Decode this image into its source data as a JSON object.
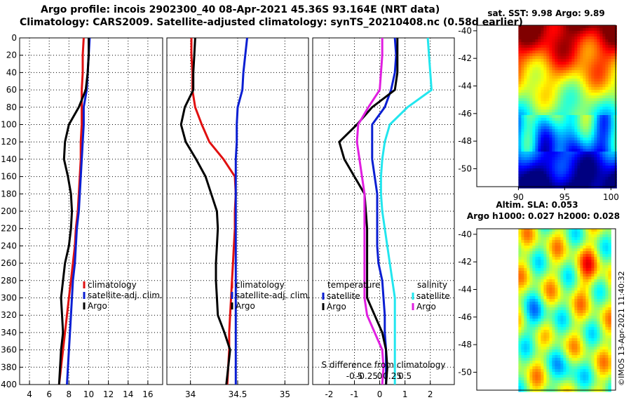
{
  "title_line1": "Argo profile: incois 2902300_40 08-Apr-2021 45.36S 93.164E (NRT data)",
  "title_line2": "Climatology: CARS2009. Satellite-adjusted climatology: synTS_20210408.nc (0.58d earlier)",
  "credit": "©IMOS 13-Apr-2021 11:40:32",
  "colors": {
    "climatology": "#e01010",
    "satellite": "#0a1ed2",
    "argo": "#000000",
    "sal_satellite": "#22e6ee",
    "sal_argo": "#e01ee0"
  },
  "depth_axis": {
    "min": 0,
    "max": 400,
    "ticks": [
      0,
      20,
      40,
      60,
      80,
      100,
      120,
      140,
      160,
      180,
      200,
      220,
      240,
      260,
      280,
      300,
      320,
      340,
      360,
      380,
      400
    ]
  },
  "chart_data": [
    {
      "type": "line",
      "name": "temperature-profile",
      "xlim": [
        3,
        17.5
      ],
      "xticks": [
        4,
        6,
        8,
        10,
        12,
        14,
        16
      ],
      "legend": [
        "climatology",
        "satellite-adj. clim.",
        "Argo"
      ],
      "series": [
        {
          "name": "climatology",
          "color": "#e01010",
          "x": [
            9.5,
            9.4,
            9.4,
            9.3,
            9.3,
            9.3,
            9.2,
            9.2,
            9.1,
            9.0,
            8.9,
            8.7,
            8.6,
            8.4,
            8.2,
            8.0,
            7.8,
            7.6,
            7.4,
            7.2,
            7.0
          ],
          "y": [
            0,
            20,
            40,
            60,
            80,
            100,
            120,
            140,
            160,
            180,
            200,
            220,
            240,
            260,
            280,
            300,
            320,
            340,
            360,
            380,
            400
          ]
        },
        {
          "name": "satellite-adj. clim.",
          "color": "#0a1ed2",
          "x": [
            10.1,
            10.0,
            9.9,
            9.8,
            9.5,
            9.5,
            9.4,
            9.3,
            9.2,
            9.1,
            9.0,
            8.8,
            8.7,
            8.6,
            8.4,
            8.3,
            8.2,
            8.1,
            8.0,
            7.9,
            7.8
          ],
          "y": [
            0,
            20,
            40,
            60,
            80,
            100,
            120,
            140,
            160,
            180,
            200,
            220,
            240,
            260,
            280,
            300,
            320,
            340,
            360,
            380,
            400
          ]
        },
        {
          "name": "Argo",
          "color": "#000000",
          "x": [
            10.0,
            10.0,
            9.9,
            9.7,
            9.0,
            8.0,
            7.6,
            7.5,
            7.9,
            8.2,
            8.3,
            8.2,
            8.0,
            7.6,
            7.4,
            7.2,
            7.3,
            7.4,
            7.2,
            7.1,
            7.0
          ],
          "y": [
            0,
            20,
            40,
            60,
            80,
            100,
            120,
            140,
            160,
            180,
            200,
            220,
            240,
            260,
            280,
            300,
            320,
            340,
            360,
            380,
            400
          ]
        }
      ]
    },
    {
      "type": "line",
      "name": "salinity-profile",
      "xlim": [
        33.75,
        35.25
      ],
      "xticks": [
        34,
        34.5,
        35
      ],
      "xticklabels": [
        "34",
        "34.5",
        "35"
      ],
      "legend": [
        "climatology",
        "satellite-adj. clim.",
        "Argo"
      ],
      "series": [
        {
          "name": "climatology",
          "color": "#e01010",
          "x": [
            34.01,
            34.01,
            34.02,
            34.02,
            34.05,
            34.12,
            34.2,
            34.35,
            34.47,
            34.48,
            34.47,
            34.47,
            34.46,
            34.45,
            34.44,
            34.43,
            34.42,
            34.41,
            34.41,
            34.4,
            34.39
          ],
          "y": [
            0,
            20,
            40,
            60,
            80,
            100,
            120,
            140,
            160,
            180,
            200,
            220,
            240,
            260,
            280,
            300,
            320,
            340,
            360,
            380,
            400
          ]
        },
        {
          "name": "satellite-adj. clim.",
          "color": "#0a1ed2",
          "x": [
            34.6,
            34.58,
            34.56,
            34.55,
            34.5,
            34.49,
            34.49,
            34.48,
            34.48,
            34.48,
            34.48,
            34.48,
            34.48,
            34.48,
            34.48,
            34.48,
            34.48,
            34.48,
            34.48,
            34.48,
            34.48
          ],
          "y": [
            0,
            20,
            40,
            60,
            80,
            100,
            120,
            140,
            160,
            180,
            200,
            220,
            240,
            260,
            280,
            300,
            320,
            340,
            360,
            380,
            400
          ]
        },
        {
          "name": "Argo",
          "color": "#000000",
          "x": [
            34.05,
            34.04,
            34.03,
            34.03,
            33.94,
            33.9,
            33.95,
            34.06,
            34.16,
            34.22,
            34.28,
            34.29,
            34.28,
            34.27,
            34.27,
            34.28,
            34.29,
            34.36,
            34.42,
            34.4,
            34.38
          ],
          "y": [
            0,
            20,
            40,
            60,
            80,
            100,
            120,
            140,
            160,
            180,
            200,
            220,
            240,
            260,
            280,
            300,
            320,
            340,
            360,
            380,
            400
          ]
        }
      ]
    },
    {
      "type": "line",
      "name": "difference-from-climatology",
      "xlim": [
        -2.65,
        2.95
      ],
      "xticks": [
        -2,
        -1,
        0,
        1,
        2
      ],
      "xticklabels": [
        "-2",
        "-1",
        "0",
        "1",
        "2"
      ],
      "xticks2": [
        -1.0,
        -0.5,
        0,
        0.5,
        1.0
      ],
      "xticklabels2": [
        "-0.5",
        "-0.25",
        "0",
        "0.25",
        "0.5"
      ],
      "xlabel2": "S difference from climatology",
      "legend_temperature": {
        "title": "temperature",
        "items": [
          "satellite",
          "Argo"
        ]
      },
      "legend_salinity": {
        "title": "salinity",
        "items": [
          "satellite",
          "Argo"
        ]
      },
      "series": [
        {
          "name": "temperature satellite",
          "color": "#0a1ed2",
          "x": [
            0.6,
            0.65,
            0.6,
            0.45,
            0.2,
            -0.3,
            -0.3,
            -0.3,
            -0.2,
            -0.1,
            -0.1,
            -0.1,
            -0.1,
            -0.05,
            0.1,
            0.15,
            0.2,
            0.2,
            0.25,
            0.25,
            0.25
          ],
          "y": [
            0,
            20,
            40,
            60,
            80,
            100,
            120,
            140,
            160,
            180,
            200,
            220,
            240,
            260,
            280,
            300,
            320,
            340,
            360,
            380,
            400
          ]
        },
        {
          "name": "temperature Argo",
          "color": "#000000",
          "x": [
            0.7,
            0.7,
            0.7,
            0.6,
            -0.3,
            -0.9,
            -1.6,
            -1.4,
            -1.0,
            -0.6,
            -0.55,
            -0.5,
            -0.5,
            -0.5,
            -0.5,
            -0.5,
            -0.2,
            0.1,
            0.25,
            0.3,
            0.25
          ],
          "y": [
            0,
            20,
            40,
            60,
            80,
            100,
            120,
            140,
            160,
            180,
            200,
            220,
            240,
            260,
            280,
            300,
            320,
            340,
            360,
            380,
            400
          ]
        },
        {
          "name": "salinity satellite",
          "color": "#22e6ee",
          "x": [
            1.9,
            1.95,
            2.0,
            2.05,
            1.1,
            0.4,
            0.2,
            0.1,
            0.05,
            0.05,
            0.1,
            0.2,
            0.3,
            0.4,
            0.5,
            0.6,
            0.6,
            0.6,
            0.6,
            0.6,
            0.6
          ],
          "y": [
            0,
            20,
            40,
            60,
            80,
            100,
            120,
            140,
            160,
            180,
            200,
            220,
            240,
            260,
            280,
            300,
            320,
            340,
            360,
            380,
            400
          ]
        },
        {
          "name": "salinity Argo",
          "color": "#e01ee0",
          "x": [
            0.1,
            0.1,
            0.05,
            0.0,
            -0.45,
            -0.85,
            -0.9,
            -0.8,
            -0.7,
            -0.6,
            -0.6,
            -0.6,
            -0.6,
            -0.6,
            -0.6,
            -0.6,
            -0.5,
            -0.2,
            0.1,
            0.15,
            0.1
          ],
          "y": [
            0,
            20,
            40,
            60,
            80,
            100,
            120,
            140,
            160,
            180,
            200,
            220,
            240,
            260,
            280,
            300,
            320,
            340,
            360,
            380,
            400
          ]
        }
      ]
    },
    {
      "type": "heatmap",
      "name": "sst-map",
      "title": "sat. SST: 9.98 Argo: 9.89",
      "xlim": [
        85.5,
        100.5
      ],
      "ylim": [
        -51.3,
        -39.6
      ],
      "xticks": [
        90,
        95,
        100
      ],
      "yticks": [
        -40,
        -42,
        -44,
        -46,
        -48,
        -50
      ],
      "coverage_xmin": 90,
      "palette": "jet"
    },
    {
      "type": "heatmap",
      "name": "sla-map",
      "title_line1": "Altim. SLA: 0.053",
      "title_line2": "Argo h1000: 0.027 h2000: 0.028",
      "xlim": [
        85.5,
        100.5
      ],
      "ylim": [
        -51.3,
        -39.6
      ],
      "yticks": [
        -40,
        -42,
        -44,
        -46,
        -48,
        -50
      ],
      "coverage_xmin": 90,
      "coverage_xmax": 100,
      "palette": "jet"
    }
  ]
}
